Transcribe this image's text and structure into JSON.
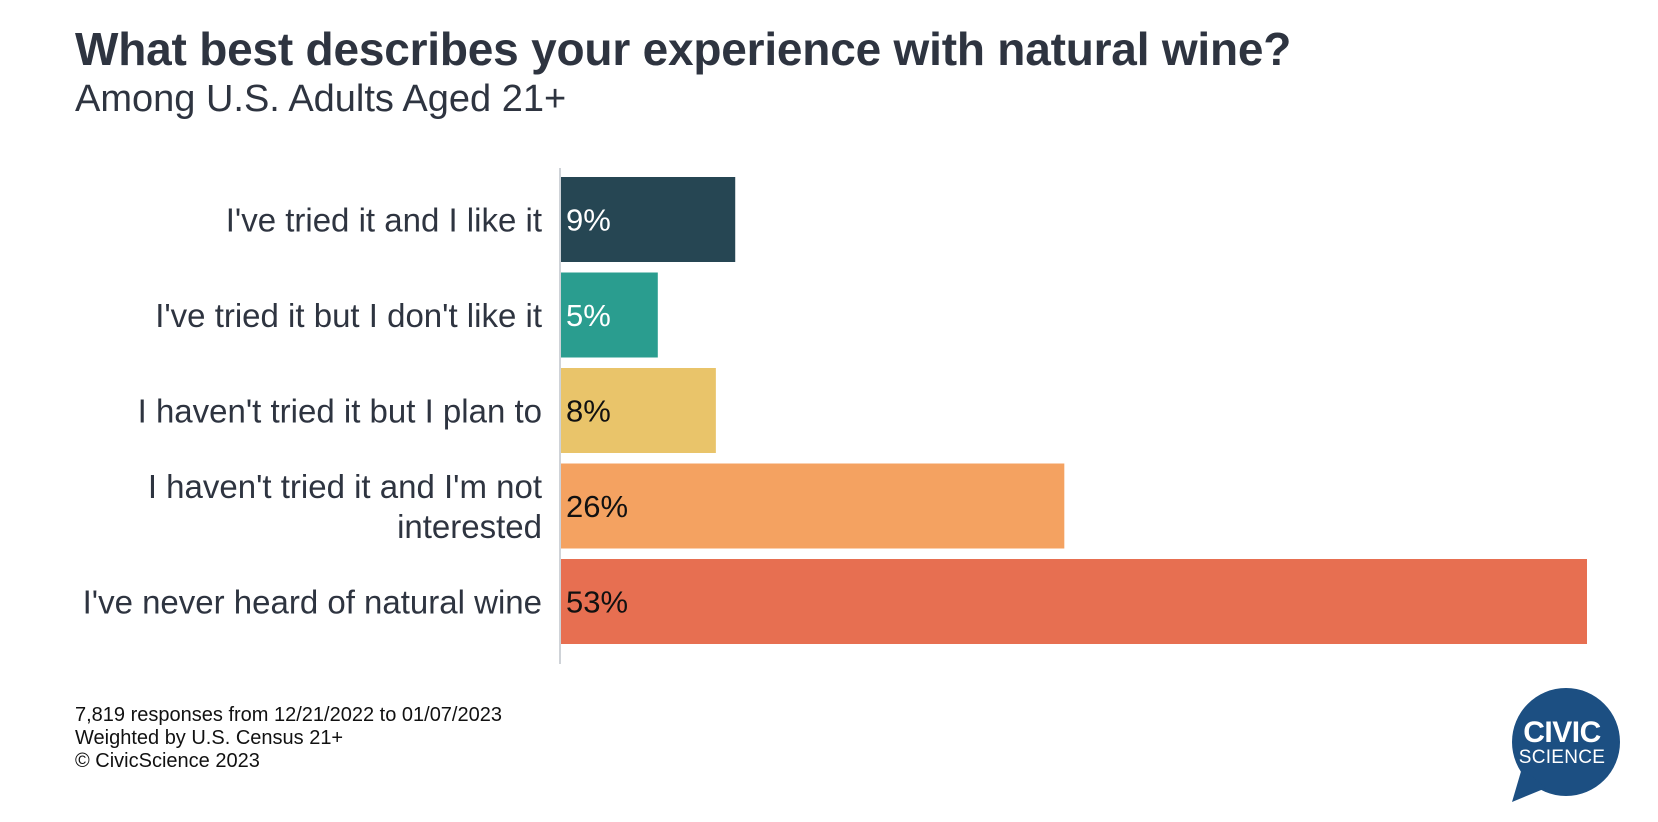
{
  "chart_data": {
    "type": "bar",
    "orientation": "horizontal",
    "title": "What best describes your experience with natural wine?",
    "subtitle": "Among U.S. Adults Aged 21+",
    "categories": [
      [
        "I've tried it and I like it"
      ],
      [
        "I've tried it but I don't like it"
      ],
      [
        "I haven't tried it but I plan to"
      ],
      [
        "I haven't tried it and I'm not",
        "interested"
      ],
      [
        "I've never heard of natural wine"
      ]
    ],
    "values": [
      9,
      5,
      8,
      26,
      53
    ],
    "value_labels": [
      "9%",
      "5%",
      "8%",
      "26%",
      "53%"
    ],
    "colors": [
      "#264653",
      "#2a9d8f",
      "#e9c46a",
      "#f4a261",
      "#e76f51"
    ],
    "label_colors": [
      "#ffffff",
      "#ffffff",
      "#111111",
      "#111111",
      "#111111"
    ],
    "xlim": [
      0,
      53
    ],
    "grid": false,
    "legend": "none"
  },
  "footer": {
    "line1": "7,819 responses from 12/21/2022 to 01/07/2023",
    "line2": "Weighted by U.S. Census  21+",
    "line3": "© CivicScience 2023"
  },
  "logo": {
    "line1": "CIVIC",
    "line2": "SCIENCE",
    "color": "#1c4f82"
  }
}
